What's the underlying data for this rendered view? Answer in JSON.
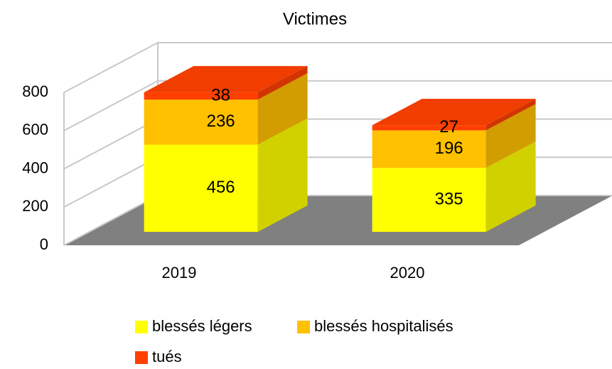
{
  "chart_data": {
    "type": "bar3d_stacked",
    "title": "Victimes",
    "categories": [
      "2019",
      "2020"
    ],
    "series": [
      {
        "name": "blessés légers",
        "color": "#ffff00",
        "values": [
          456,
          335
        ]
      },
      {
        "name": "blessés hospitalisés",
        "color": "#ffc000",
        "values": [
          236,
          196
        ]
      },
      {
        "name": "tués",
        "color": "#ff4000",
        "values": [
          38,
          27
        ]
      }
    ],
    "ylim": [
      0,
      800
    ],
    "yticks": [
      0,
      200,
      400,
      600,
      800
    ],
    "grid": true,
    "legend": "bottom"
  }
}
